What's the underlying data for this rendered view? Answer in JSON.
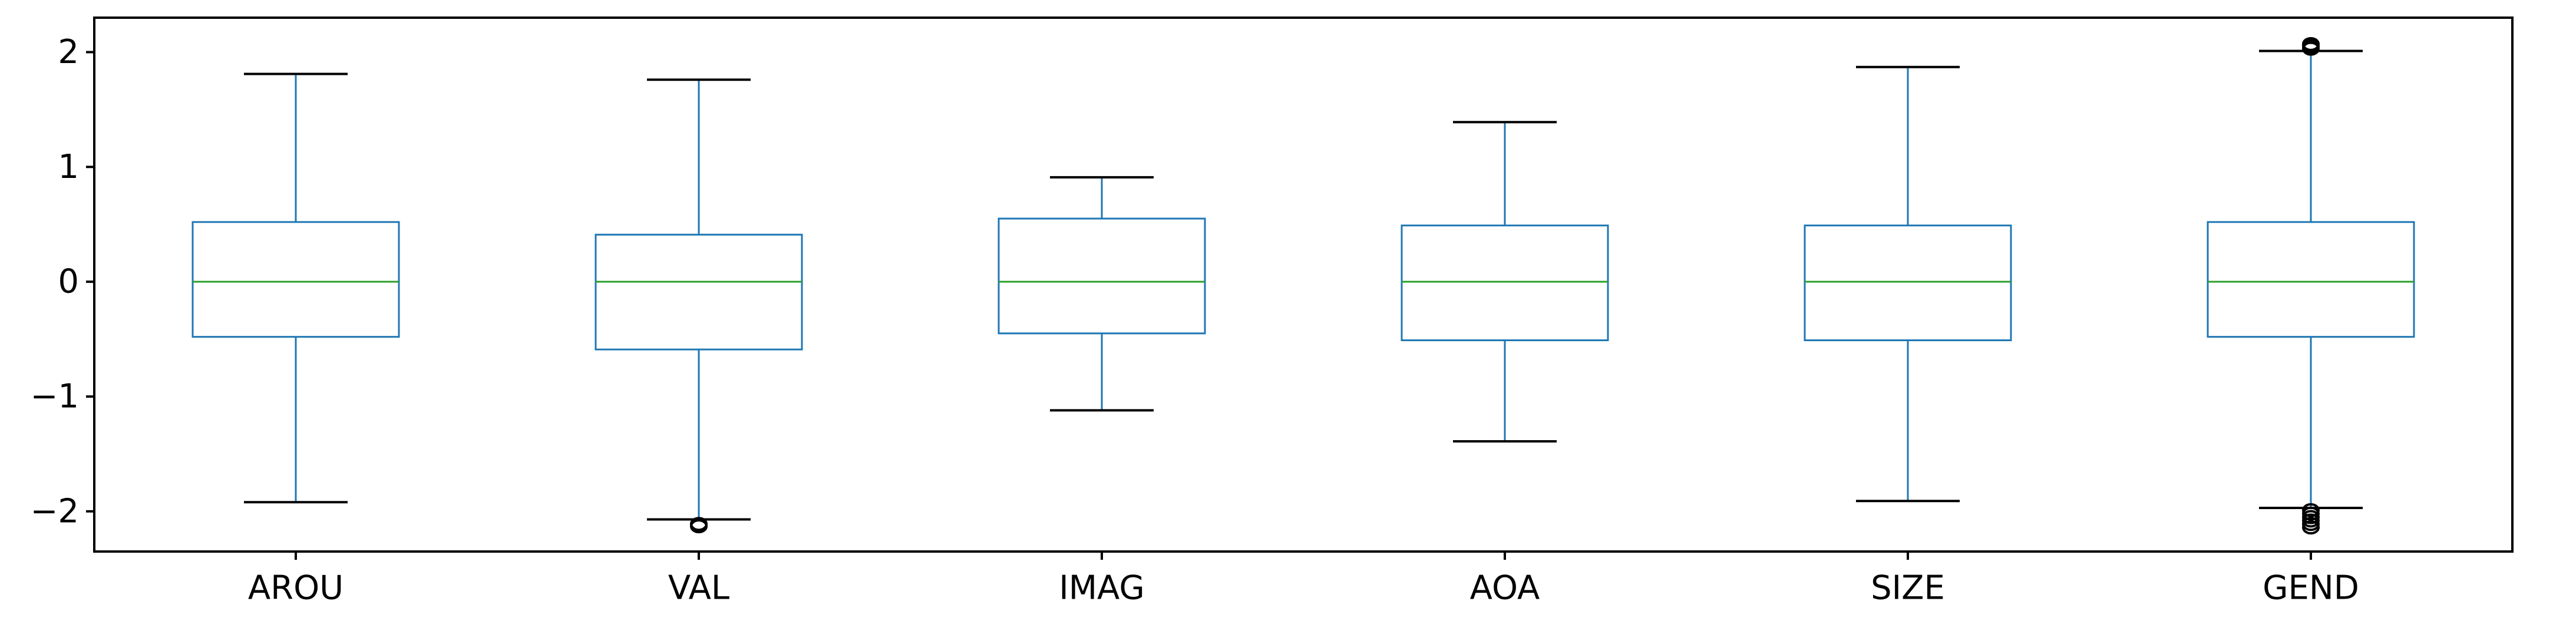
{
  "chart_data": {
    "type": "box",
    "title": "",
    "xlabel": "",
    "ylabel": "",
    "categories": [
      "AROU",
      "VAL",
      "IMAG",
      "AOA",
      "SIZE",
      "GEND"
    ],
    "y_ticks": [
      2,
      1,
      0,
      -1,
      -2
    ],
    "y_tick_labels": [
      "2",
      "1",
      "0",
      "−1",
      "−2"
    ],
    "ylim": [
      -2.35,
      2.3
    ],
    "grid": false,
    "legend": "none",
    "boxes": [
      {
        "label": "AROU",
        "whisker_low": -1.92,
        "q1": -0.48,
        "median": 0.0,
        "q3": 0.52,
        "whisker_high": 1.81,
        "outliers": []
      },
      {
        "label": "VAL",
        "whisker_low": -2.07,
        "q1": -0.59,
        "median": 0.0,
        "q3": 0.41,
        "whisker_high": 1.76,
        "outliers": [
          -2.11,
          -2.13
        ]
      },
      {
        "label": "IMAG",
        "whisker_low": -1.12,
        "q1": -0.45,
        "median": 0.0,
        "q3": 0.55,
        "whisker_high": 0.91,
        "outliers": []
      },
      {
        "label": "AOA",
        "whisker_low": -1.39,
        "q1": -0.51,
        "median": 0.0,
        "q3": 0.49,
        "whisker_high": 1.39,
        "outliers": []
      },
      {
        "label": "SIZE",
        "whisker_low": -1.91,
        "q1": -0.51,
        "median": 0.0,
        "q3": 0.49,
        "whisker_high": 1.87,
        "outliers": []
      },
      {
        "label": "GEND",
        "whisker_low": -1.97,
        "q1": -0.48,
        "median": 0.0,
        "q3": 0.52,
        "whisker_high": 2.01,
        "outliers": [
          2.03,
          2.05,
          2.07,
          -1.99,
          -2.02,
          -2.05,
          -2.08,
          -2.11,
          -2.14
        ]
      }
    ],
    "colors": {
      "box": "#1f77b4",
      "median": "#2ca02c",
      "whisker_cap": "#000000",
      "outlier_edge": "#000000",
      "axes": "#000000"
    }
  }
}
